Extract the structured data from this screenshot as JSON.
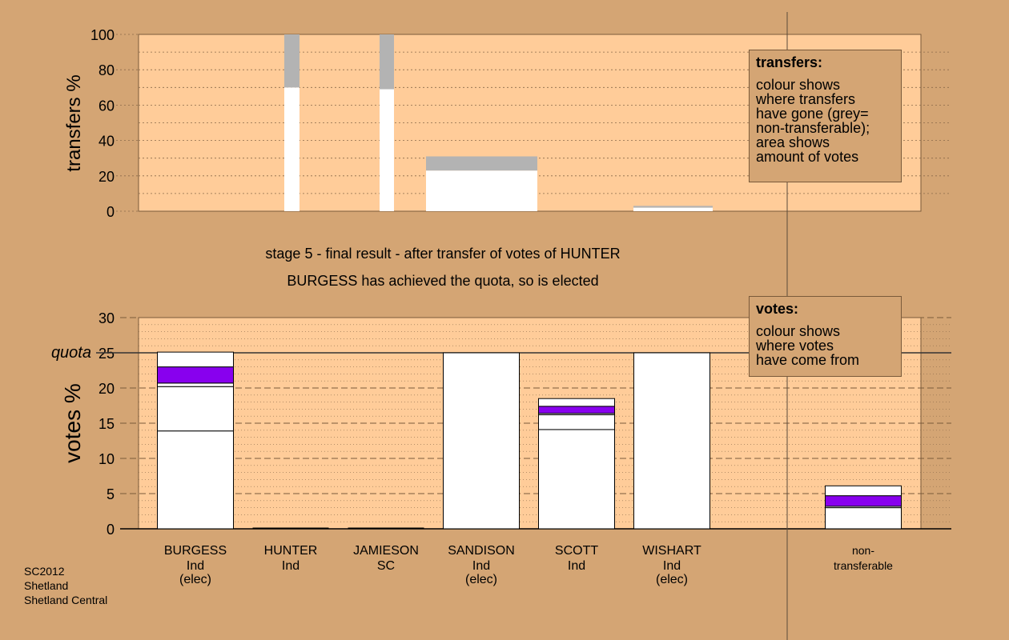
{
  "chart_data": [
    {
      "type": "bar",
      "panel": "transfers",
      "ylabel": "transfers %",
      "ylim": [
        0,
        100
      ],
      "yticks": [
        0,
        20,
        40,
        60,
        80,
        100
      ],
      "grid": true,
      "bars": [
        {
          "candidate": "HUNTER",
          "transferred": 70,
          "non_transferable": 30
        },
        {
          "candidate": "JAMIESON",
          "transferred": 69,
          "non_transferable": 31
        },
        {
          "candidate": "SANDISON",
          "transferred": 23,
          "non_transferable": 8
        },
        {
          "candidate": "WISHART",
          "transferred": 2,
          "non_transferable": 1
        }
      ],
      "legend": {
        "title": "transfers:",
        "lines": [
          "colour shows",
          "where transfers",
          "have gone (grey=",
          "non-transferable);",
          "",
          "area shows",
          "amount of votes"
        ]
      }
    },
    {
      "type": "bar",
      "panel": "votes",
      "ylabel": "votes %",
      "ylim": [
        0,
        30
      ],
      "yticks": [
        0,
        5,
        10,
        15,
        20,
        25,
        30
      ],
      "quota": 25,
      "quota_label": "quota",
      "grid": true,
      "categories": [
        {
          "name": "BURGESS",
          "party": "Ind",
          "status": "(elec)"
        },
        {
          "name": "HUNTER",
          "party": "Ind",
          "status": ""
        },
        {
          "name": "JAMIESON",
          "party": "SC",
          "status": ""
        },
        {
          "name": "SANDISON",
          "party": "Ind",
          "status": "(elec)"
        },
        {
          "name": "SCOTT",
          "party": "Ind",
          "status": ""
        },
        {
          "name": "WISHART",
          "party": "Ind",
          "status": "(elec)"
        },
        {
          "name": "non-",
          "party": "transferable",
          "status": ""
        }
      ],
      "stacks": [
        [
          {
            "value": 13.9,
            "color": "#ffffff"
          },
          {
            "value": 6.3,
            "color": "#ffffff"
          },
          {
            "value": 0.5,
            "color": "#ffffff"
          },
          {
            "value": 2.3,
            "color": "#8800ee"
          },
          {
            "value": 2.1,
            "color": "#ffffff"
          }
        ],
        [],
        [],
        [
          {
            "value": 25.0,
            "color": "#ffffff"
          }
        ],
        [
          {
            "value": 14.1,
            "color": "#ffffff"
          },
          {
            "value": 2.1,
            "color": "#ffffff"
          },
          {
            "value": 0.2,
            "color": "#ffffff"
          },
          {
            "value": 1.0,
            "color": "#8800ee"
          },
          {
            "value": 1.1,
            "color": "#ffffff"
          }
        ],
        [
          {
            "value": 25.0,
            "color": "#ffffff"
          }
        ],
        [
          {
            "value": 3.0,
            "color": "#ffffff"
          },
          {
            "value": 0.2,
            "color": "#ffffff"
          },
          {
            "value": 1.5,
            "color": "#8800ee"
          },
          {
            "value": 1.4,
            "color": "#ffffff"
          }
        ]
      ],
      "legend": {
        "title": "votes:",
        "lines": [
          "colour shows",
          "where votes",
          "have come from"
        ]
      }
    }
  ],
  "stage_title": "stage 5 - final result - after transfer of votes of HUNTER",
  "stage_subtitle": "BURGESS has achieved the quota, so is elected",
  "credit": [
    "SC2012",
    "Shetland",
    "Shetland Central"
  ],
  "colors": {
    "background": "#d4a574",
    "plot_area": "#ffcc99",
    "non_transferable": "#b3b3b3",
    "transfer_white": "#ffffff",
    "purple": "#8800ee"
  }
}
